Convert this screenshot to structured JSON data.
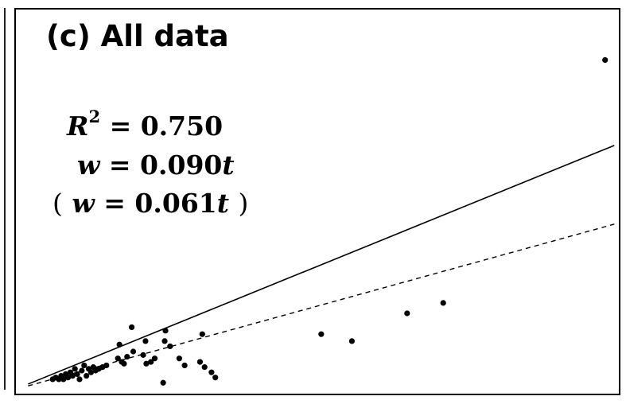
{
  "panel": {
    "title": "(c) All data",
    "r2_var": "R",
    "r2_exp": "2",
    "r2_rhs": "= 0.750",
    "fit_w": "w",
    "fit_mid": "= 0.090",
    "fit_t": "t",
    "alt_open": "(",
    "alt_w": "w",
    "alt_mid": "= 0.061",
    "alt_t": "t",
    "alt_close": ")"
  },
  "chart_data": {
    "type": "scatter",
    "xlim": [
      0,
      790
    ],
    "ylim": [
      0,
      110
    ],
    "grid": false,
    "points": [
      [
        50,
        3
      ],
      [
        54,
        3.5
      ],
      [
        58,
        3
      ],
      [
        61,
        4
      ],
      [
        64,
        3
      ],
      [
        67,
        4.5
      ],
      [
        70,
        3.5
      ],
      [
        73,
        5
      ],
      [
        76,
        4
      ],
      [
        79,
        6
      ],
      [
        82,
        4.5
      ],
      [
        85,
        3
      ],
      [
        88,
        5.5
      ],
      [
        91,
        7
      ],
      [
        94,
        4
      ],
      [
        97,
        6
      ],
      [
        100,
        5
      ],
      [
        103,
        6.5
      ],
      [
        106,
        5.5
      ],
      [
        110,
        6
      ],
      [
        115,
        6.5
      ],
      [
        120,
        7
      ],
      [
        135,
        9
      ],
      [
        140,
        8
      ],
      [
        143,
        7.5
      ],
      [
        147,
        9.5
      ],
      [
        155,
        11
      ],
      [
        168,
        10
      ],
      [
        172,
        7.5
      ],
      [
        178,
        8
      ],
      [
        183,
        9
      ],
      [
        196,
        14
      ],
      [
        203,
        12.5
      ],
      [
        215,
        9
      ],
      [
        222,
        7
      ],
      [
        242,
        8
      ],
      [
        248,
        6.5
      ],
      [
        257,
        5
      ],
      [
        137,
        13
      ],
      [
        153,
        18
      ],
      [
        171,
        14
      ],
      [
        197,
        17
      ],
      [
        245,
        16
      ],
      [
        194,
        2
      ],
      [
        262,
        3.5
      ],
      [
        400,
        16
      ],
      [
        440,
        14
      ],
      [
        512,
        22
      ],
      [
        559,
        25
      ],
      [
        770,
        95
      ]
    ],
    "lines": [
      {
        "style": "solid",
        "slope": 0.09
      },
      {
        "style": "dashed",
        "slope": 0.061
      }
    ]
  }
}
